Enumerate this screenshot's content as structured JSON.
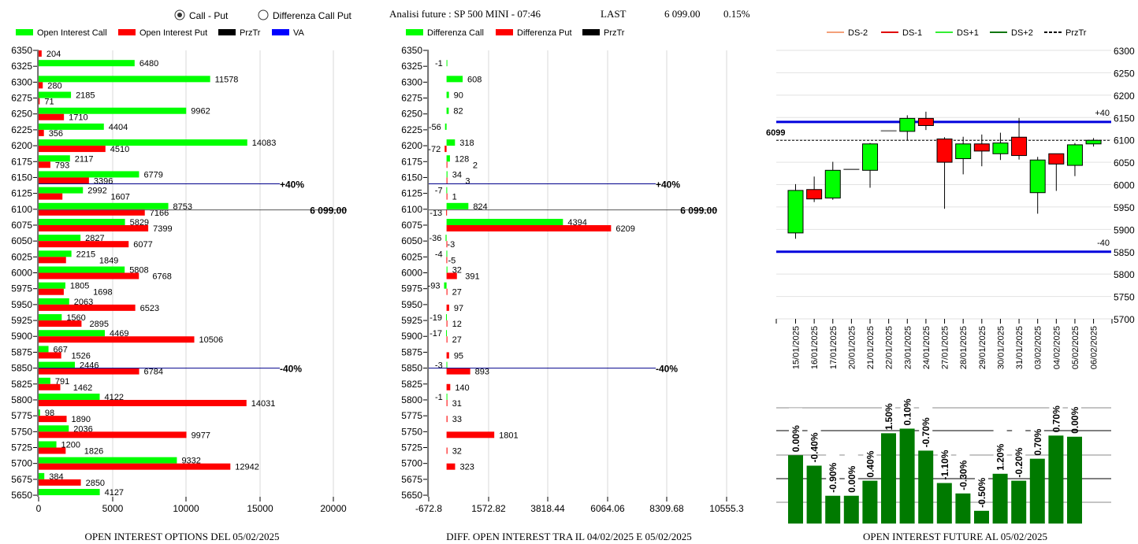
{
  "header": {
    "radio_call_put": "Call - Put",
    "radio_call_put_checked": true,
    "radio_diff": "Differenza Call Put",
    "radio_diff_checked": false,
    "title": "Analisi future : SP 500 MINI - 07:46",
    "last_label": "LAST",
    "last_value": "6 099.00",
    "change": "0.15%"
  },
  "colors": {
    "call": "#00ff00",
    "put": "#ff0000",
    "przTr": "#000000",
    "va": "#0000ff",
    "future_bar": "#007a00"
  },
  "chart_data": [
    {
      "id": "oi_options",
      "type": "bar",
      "orientation": "horizontal",
      "title": "OPEN INTEREST OPTIONS DEL 05/02/2025",
      "legend": [
        "Open Interest Call",
        "Open Interest Put",
        "PrzTr",
        "VA"
      ],
      "categories": [
        6350,
        6325,
        6300,
        6275,
        6250,
        6225,
        6200,
        6175,
        6150,
        6125,
        6100,
        6075,
        6050,
        6025,
        6000,
        5975,
        5950,
        5925,
        5900,
        5875,
        5850,
        5825,
        5800,
        5775,
        5750,
        5725,
        5700,
        5675,
        5650
      ],
      "series": [
        {
          "name": "Open Interest Call",
          "values": [
            null,
            6480,
            11578,
            2185,
            9962,
            4404,
            14083,
            2117,
            6779,
            2992,
            8753,
            5829,
            2827,
            2215,
            5808,
            1805,
            2063,
            1560,
            4469,
            667,
            2446,
            791,
            4122,
            98,
            2036,
            1200,
            9332,
            384,
            4127
          ]
        },
        {
          "name": "Open Interest Put",
          "values": [
            204,
            null,
            280,
            71,
            1710,
            356,
            4510,
            793,
            3396,
            1607,
            7166,
            7399,
            6077,
            1849,
            6768,
            1698,
            6523,
            2895,
            10506,
            1526,
            6784,
            1462,
            14031,
            1890,
            9977,
            1826,
            12942,
            2850,
            null
          ]
        }
      ],
      "xticks": [
        "0",
        "5000",
        "10000",
        "15000",
        "20000"
      ],
      "xlim": [
        0,
        20000
      ],
      "lines": [
        {
          "label": "+40%",
          "price": 6140,
          "kind": "va"
        },
        {
          "label": "6 099.00",
          "price": 6099,
          "kind": "przTr"
        },
        {
          "label": "-40%",
          "price": 5850,
          "kind": "va"
        }
      ]
    },
    {
      "id": "diff_oi",
      "type": "bar",
      "orientation": "horizontal",
      "title": "DIFF. OPEN INTEREST TRA IL 04/02/2025 E 05/02/2025",
      "legend": [
        "Differenza Call",
        "Differenza Put",
        "PrzTr"
      ],
      "categories": [
        6350,
        6325,
        6300,
        6275,
        6250,
        6225,
        6200,
        6175,
        6150,
        6125,
        6100,
        6075,
        6050,
        6025,
        6000,
        5975,
        5950,
        5925,
        5900,
        5875,
        5850,
        5825,
        5800,
        5775,
        5750,
        5725,
        5700,
        5675,
        5650
      ],
      "series": [
        {
          "name": "Differenza Call",
          "values": [
            null,
            -1,
            608,
            90,
            82,
            -56,
            318,
            128,
            34,
            -7,
            824,
            4394,
            -36,
            -4,
            32,
            -93,
            null,
            -19,
            -17,
            null,
            -3,
            null,
            -1,
            null,
            null,
            null,
            null,
            null,
            null
          ]
        },
        {
          "name": "Differenza Put",
          "values": [
            null,
            null,
            null,
            null,
            null,
            null,
            -72,
            2,
            3,
            1,
            -13,
            6209,
            -3,
            -5,
            391,
            27,
            97,
            12,
            27,
            95,
            893,
            140,
            31,
            33,
            1801,
            32,
            323,
            null,
            null
          ]
        }
      ],
      "xticks": [
        "-672.8",
        "1572.82",
        "3818.44",
        "6064.06",
        "8309.68",
        "10555.3"
      ],
      "xlim": [
        -672.8,
        10555.3
      ],
      "lines": [
        {
          "label": "+40%",
          "price": 6140,
          "kind": "va"
        },
        {
          "label": "6 099.00",
          "price": 6099,
          "kind": "przTr"
        },
        {
          "label": "-40%",
          "price": 5850,
          "kind": "va"
        }
      ]
    },
    {
      "id": "candles",
      "type": "candlestick",
      "legend": [
        "DS-2",
        "DS-1",
        "DS+1",
        "DS+2",
        "PrzTr"
      ],
      "legend_colors": [
        "#f4a07a",
        "#e00000",
        "#33ee33",
        "#117711",
        "#000000"
      ],
      "ylim": [
        5700,
        6300
      ],
      "yticks": [
        "6300",
        "6250",
        "6200",
        "6150",
        "6100",
        "6050",
        "6000",
        "5950",
        "5900",
        "5850",
        "5800",
        "5750",
        "5700"
      ],
      "przTr_label": "6099",
      "przTr": 6099,
      "upper_label": "+40",
      "upper": 6140,
      "lower_label": "-40",
      "lower": 5850,
      "dates": [
        "15/01/2025",
        "16/01/2025",
        "17/01/2025",
        "20/01/2025",
        "21/01/2025",
        "22/01/2025",
        "23/01/2025",
        "24/01/2025",
        "27/01/2025",
        "28/01/2025",
        "29/01/2025",
        "30/01/2025",
        "31/01/2025",
        "03/02/2025",
        "04/02/2025",
        "05/02/2025",
        "06/02/2025"
      ],
      "ohlc": [
        [
          5892,
          6001,
          5879,
          5987
        ],
        [
          5989,
          6018,
          5961,
          5968
        ],
        [
          5970,
          6051,
          5966,
          6032
        ],
        [
          6034,
          6034,
          6034,
          6034
        ],
        [
          6032,
          6093,
          5993,
          6091
        ],
        [
          6120,
          6120,
          6120,
          6120
        ],
        [
          6119,
          6155,
          6099,
          6148
        ],
        [
          6148,
          6163,
          6122,
          6132
        ],
        [
          6102,
          6106,
          5946,
          6050
        ],
        [
          6058,
          6107,
          6023,
          6091
        ],
        [
          6091,
          6112,
          6041,
          6075
        ],
        [
          6069,
          6116,
          6055,
          6093
        ],
        [
          6106,
          6149,
          6056,
          6065
        ],
        [
          5982,
          6062,
          5935,
          6055
        ],
        [
          6069,
          6069,
          5986,
          6046
        ],
        [
          6043,
          6093,
          6019,
          6089
        ],
        [
          6091,
          6104,
          6085,
          6099
        ]
      ]
    },
    {
      "id": "oi_future",
      "type": "bar",
      "title": "OPEN INTEREST FUTURE AL 05/02/2025",
      "labels": [
        "0.00%",
        "-0.40%",
        "-0.90%",
        "0.00%",
        "0.40%",
        "1.50%",
        "0.10%",
        "-0.70%",
        "-1.10%",
        "-0.30%",
        "-0.50%",
        "1.20%",
        "-0.20%",
        "0.70%",
        "0.70%",
        "0.00%"
      ],
      "relative_values": [
        0.59,
        0.5,
        0.24,
        0.24,
        0.37,
        0.78,
        0.82,
        0.63,
        0.35,
        0.26,
        0.11,
        0.43,
        0.37,
        0.56,
        0.76,
        0.75
      ]
    }
  ]
}
